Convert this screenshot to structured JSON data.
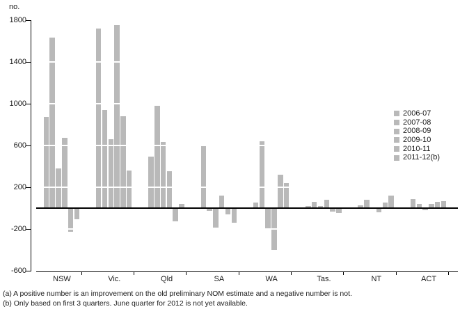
{
  "unit_label": "no.",
  "chart_data": {
    "type": "bar",
    "title": "",
    "xlabel": "",
    "ylabel": "no.",
    "categories": [
      "NSW",
      "Vic.",
      "Qld",
      "SA",
      "WA",
      "Tas.",
      "NT",
      "ACT"
    ],
    "series": [
      {
        "name": "2006-07",
        "values": [
          870,
          1720,
          490,
          590,
          50,
          15,
          25,
          85
        ]
      },
      {
        "name": "2007-08",
        "values": [
          1630,
          940,
          980,
          -30,
          640,
          55,
          75,
          35
        ]
      },
      {
        "name": "2008-09",
        "values": [
          380,
          660,
          630,
          -190,
          -210,
          15,
          0,
          -20
        ]
      },
      {
        "name": "2009-10",
        "values": [
          670,
          1750,
          350,
          120,
          -400,
          80,
          -40,
          40
        ]
      },
      {
        "name": "2010-11",
        "values": [
          -230,
          880,
          -130,
          -60,
          320,
          -35,
          50,
          55
        ]
      },
      {
        "name": "2011-12(b)",
        "values": [
          -110,
          360,
          40,
          -140,
          240,
          -50,
          120,
          65
        ]
      }
    ],
    "ylim": [
      -600,
      1800
    ],
    "yticks": [
      1800,
      1400,
      1000,
      600,
      200,
      -200,
      -600
    ],
    "white_gridlines_at": [
      1400,
      1000,
      600,
      200,
      -200
    ],
    "bar_color": "#b9b9b9",
    "axis_color": "#000000",
    "legend_position": "right",
    "legend_labels": [
      "2006-07",
      "2007-08",
      "2008-09",
      "2009-10",
      "2010-11",
      "2011-12(b)"
    ]
  },
  "footnotes": {
    "a": "(a) A positive number is an improvement on the old preliminary NOM estimate and a negative number is not.",
    "b": "(b) Only based on first 3 quarters. June quarter for 2012 is not yet available."
  }
}
